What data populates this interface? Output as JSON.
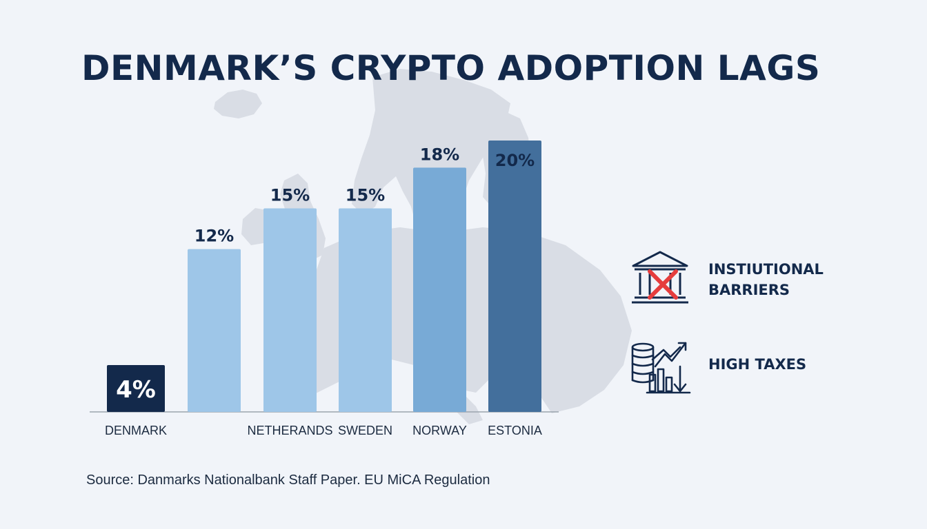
{
  "colors": {
    "background": "#f1f4f9",
    "map": "#d9dde5",
    "title": "#13294b",
    "denmark_bar": "#13294b",
    "light_bar": "#9ec6e8",
    "medium_bar": "#78aad6",
    "dark_bar": "#436f9c",
    "axis": "#9aa3ad",
    "icon_stroke": "#13294b",
    "icon_cross": "#e53d3d"
  },
  "header": {
    "title": "DENMARK’S CRYPTO ADOPTION LAGS"
  },
  "chart_data": {
    "type": "bar",
    "title": "DENMARK’S CRYPTO ADOPTION LAGS",
    "categories": [
      "DENMARK",
      "",
      "NETHERANDS",
      "SWEDEN",
      "NORWAY",
      "ESTONIA"
    ],
    "values": [
      4,
      12,
      15,
      15,
      18,
      20
    ],
    "data_labels": [
      "4%",
      "12%",
      "15%",
      "15%",
      "18%",
      "20%"
    ],
    "bar_colors": [
      "#13294b",
      "#9ec6e8",
      "#9ec6e8",
      "#9ec6e8",
      "#78aad6",
      "#436f9c"
    ],
    "xlabel": "",
    "ylabel": "",
    "ylim": [
      0,
      20
    ],
    "grid": false,
    "legend": "none"
  },
  "factors": [
    {
      "icon": "bank-crossed-icon",
      "label": "INSTIUTIONAL\nBARRIERS"
    },
    {
      "icon": "coins-chart-icon",
      "label": "HIGH TAXES"
    }
  ],
  "footer": {
    "source": "Source: Danmarks Nationalbank Staff Paper. EU MiCA Regulation"
  }
}
